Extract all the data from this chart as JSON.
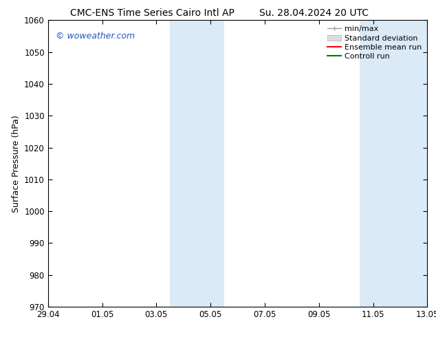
{
  "title_left": "CMC-ENS Time Series Cairo Intl AP",
  "title_right": "Su. 28.04.2024 20 UTC",
  "ylabel": "Surface Pressure (hPa)",
  "ylim": [
    970,
    1060
  ],
  "yticks": [
    970,
    980,
    990,
    1000,
    1010,
    1020,
    1030,
    1040,
    1050,
    1060
  ],
  "xtick_labels": [
    "29.04",
    "01.05",
    "03.05",
    "05.05",
    "07.05",
    "09.05",
    "11.05",
    "13.05"
  ],
  "xtick_positions": [
    0,
    2,
    4,
    6,
    8,
    10,
    12,
    14
  ],
  "shaded_regions": [
    {
      "x_start": 4.5,
      "x_end": 6.5
    },
    {
      "x_start": 11.5,
      "x_end": 14.0
    }
  ],
  "shaded_color": "#daeaf7",
  "watermark_text": "© woweather.com",
  "watermark_color": "#2255bb",
  "legend_labels": [
    "min/max",
    "Standard deviation",
    "Ensemble mean run",
    "Controll run"
  ],
  "legend_colors_line": [
    "#999999",
    "#bbbbbb",
    "#ff0000",
    "#007700"
  ],
  "background_color": "#ffffff",
  "plot_bg_color": "#ffffff",
  "title_fontsize": 10,
  "tick_fontsize": 8.5,
  "label_fontsize": 9,
  "watermark_fontsize": 9,
  "legend_fontsize": 8
}
